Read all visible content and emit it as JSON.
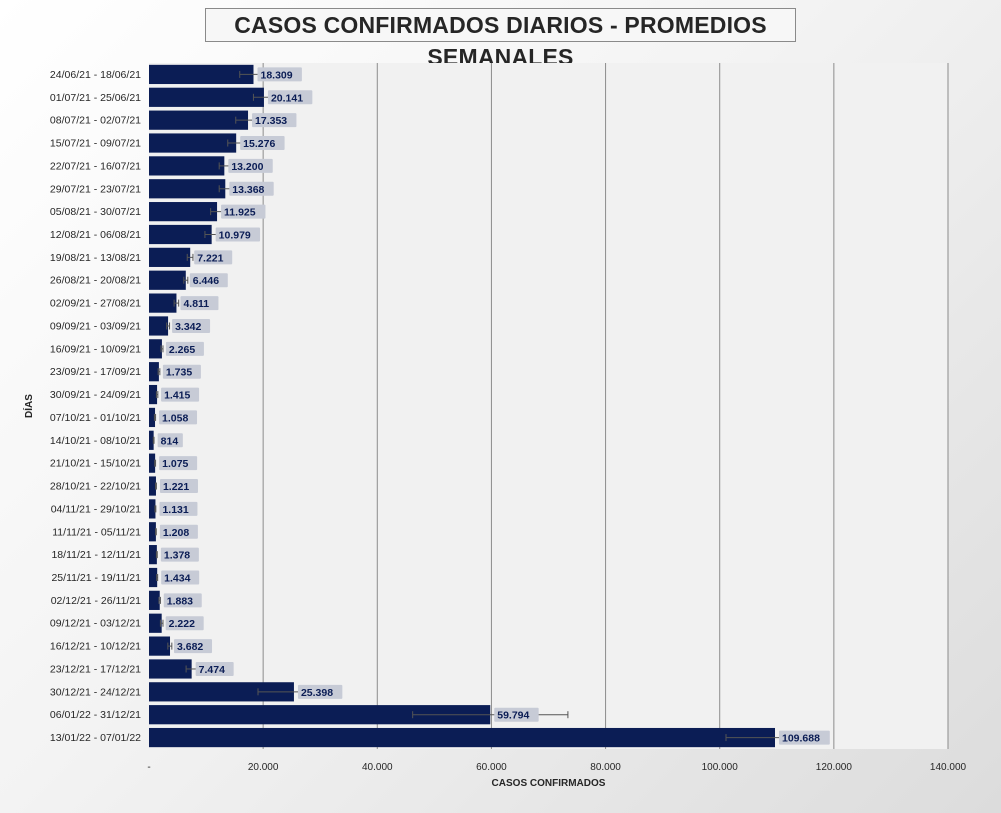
{
  "colors": {
    "bar": "#0b1d55",
    "label_bg": "#c7cbd6",
    "label_text": "#0b1d55",
    "plot_bg": "#f1f1f1",
    "grid": "#8c8c8c",
    "text": "#262626"
  },
  "chart_data": {
    "type": "bar",
    "orientation": "horizontal",
    "title": "CASOS CONFIRMADOS DIARIOS - PROMEDIOS SEMANALES",
    "xlabel": "CASOS CONFIRMADOS",
    "ylabel": "DÍAS",
    "xlim": [
      0,
      140000
    ],
    "x_ticks": [
      "-",
      "20.000",
      "40.000",
      "60.000",
      "80.000",
      "100.000",
      "120.000",
      "140.000"
    ],
    "grid": "vertical",
    "error_bars": true,
    "categories": [
      "24/06/21 - 18/06/21",
      "01/07/21 - 25/06/21",
      "08/07/21 - 02/07/21",
      "15/07/21 - 09/07/21",
      "22/07/21 - 16/07/21",
      "29/07/21 - 23/07/21",
      "05/08/21 - 30/07/21",
      "12/08/21 - 06/08/21",
      "19/08/21 - 13/08/21",
      "26/08/21 - 20/08/21",
      "02/09/21 - 27/08/21",
      "09/09/21 - 03/09/21",
      "16/09/21 - 10/09/21",
      "23/09/21 - 17/09/21",
      "30/09/21 - 24/09/21",
      "07/10/21 - 01/10/21",
      "14/10/21 - 08/10/21",
      "21/10/21 - 15/10/21",
      "28/10/21 - 22/10/21",
      "04/11/21 - 29/10/21",
      "11/11/21 - 05/11/21",
      "18/11/21 - 12/11/21",
      "25/11/21 - 19/11/21",
      "02/12/21 - 26/11/21",
      "09/12/21 - 03/12/21",
      "16/12/21 - 10/12/21",
      "23/12/21 - 17/12/21",
      "30/12/21 - 24/12/21",
      "06/01/22 - 31/12/21",
      "13/01/22 - 07/01/22"
    ],
    "values": [
      18309,
      20141,
      17353,
      15276,
      13200,
      13368,
      11925,
      10979,
      7221,
      6446,
      4811,
      3342,
      2265,
      1735,
      1415,
      1058,
      814,
      1075,
      1221,
      1131,
      1208,
      1378,
      1434,
      1883,
      2222,
      3682,
      7474,
      25398,
      59794,
      109688
    ],
    "value_labels": [
      "18.309",
      "20.141",
      "17.353",
      "15.276",
      "13.200",
      "13.368",
      "11.925",
      "10.979",
      "7.221",
      "6.446",
      "4.811",
      "3.342",
      "2.265",
      "1.735",
      "1.415",
      "1.058",
      "814",
      "1.075",
      "1.221",
      "1.131",
      "1.208",
      "1.378",
      "1.434",
      "1.883",
      "2.222",
      "3.682",
      "7.474",
      "25.398",
      "59.794",
      "109.688"
    ],
    "error_low": [
      15900,
      18300,
      15200,
      13800,
      12300,
      12300,
      10800,
      9800,
      6700,
      6100,
      4400,
      3100,
      2100,
      1600,
      1300,
      950,
      750,
      1000,
      1150,
      1050,
      1150,
      1300,
      1350,
      1750,
      2000,
      3300,
      6500,
      19100,
      46200,
      101100
    ],
    "error_high": [
      20700,
      22000,
      19500,
      16800,
      14100,
      14400,
      13000,
      12200,
      7700,
      6800,
      5200,
      3600,
      2450,
      1900,
      1550,
      1150,
      880,
      1150,
      1300,
      1200,
      1280,
      1450,
      1520,
      2000,
      2450,
      4000,
      8400,
      31700,
      73400,
      118300
    ]
  }
}
